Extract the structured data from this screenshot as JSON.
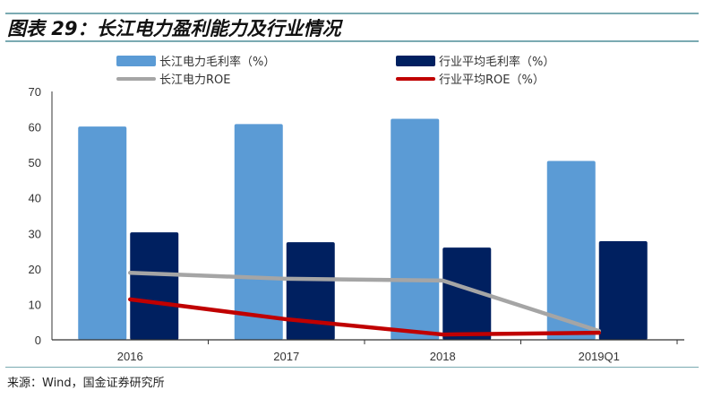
{
  "title": "图表 29：长江电力盈利能力及行业情况",
  "source": "来源：Wind，国金证券研究所",
  "colors": {
    "cj_gm": "#5b9bd5",
    "ind_gm": "#002060",
    "cj_roe": "#a5a5a5",
    "ind_roe": "#c00000",
    "rule": "#7aaab2"
  },
  "chart_data": {
    "type": "bar",
    "title": "长江电力盈利能力及行业情况",
    "xlabel": "",
    "ylabel": "",
    "categories": [
      "2016",
      "2017",
      "2018",
      "2019Q1"
    ],
    "ylim": [
      0,
      70
    ],
    "yticks": [
      0,
      10,
      20,
      30,
      40,
      50,
      60,
      70
    ],
    "legend_position": "top",
    "series": [
      {
        "name": "长江电力毛利率（%）",
        "type": "bar",
        "values": [
          60.1,
          60.8,
          62.3,
          50.4
        ]
      },
      {
        "name": "行业平均毛利率（%）",
        "type": "bar",
        "values": [
          30.3,
          27.5,
          26.0,
          27.8
        ]
      },
      {
        "name": "长江电力ROE",
        "type": "line",
        "values": [
          18.9,
          17.2,
          16.7,
          2.5
        ]
      },
      {
        "name": "行业平均ROE（%）",
        "type": "line",
        "values": [
          11.4,
          5.8,
          1.5,
          2.0
        ]
      }
    ]
  }
}
